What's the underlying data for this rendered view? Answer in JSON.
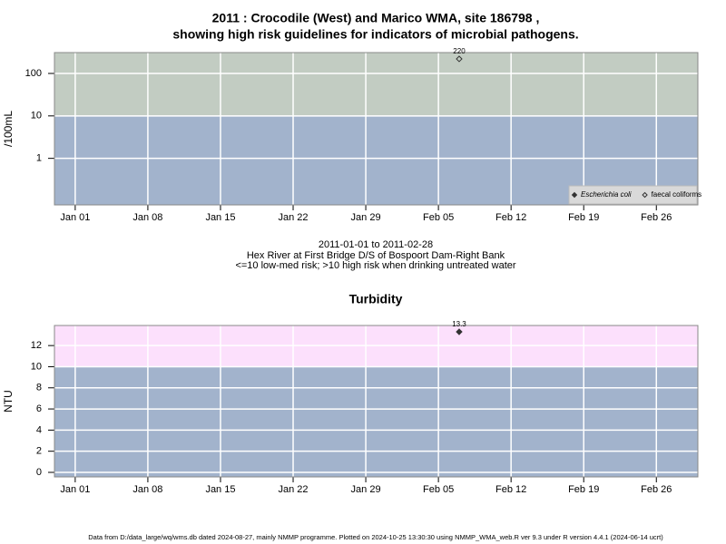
{
  "chart_data": [
    {
      "type": "scatter",
      "title": [
        "2011 : Crocodile (West) and Marico WMA, site 186798 ,",
        "showing high risk guidelines for indicators of microbial pathogens."
      ],
      "ylabel": "/100mL",
      "caption": [
        "2011-01-01 to 2011-02-28",
        "Hex River at First Bridge D/S of Bospoort Dam-Right Bank",
        "<=10 low-med risk; >10 high risk when drinking untreated water"
      ],
      "log_y": true,
      "xlim": [
        "2010-12-30",
        "2011-03-02"
      ],
      "xticks": [
        {
          "value": "2011-01-01",
          "label": "Jan 01"
        },
        {
          "value": "2011-01-08",
          "label": "Jan 08"
        },
        {
          "value": "2011-01-15",
          "label": "Jan 15"
        },
        {
          "value": "2011-01-22",
          "label": "Jan 22"
        },
        {
          "value": "2011-01-29",
          "label": "Jan 29"
        },
        {
          "value": "2011-02-05",
          "label": "Feb 05"
        },
        {
          "value": "2011-02-12",
          "label": "Feb 12"
        },
        {
          "value": "2011-02-19",
          "label": "Feb 19"
        },
        {
          "value": "2011-02-26",
          "label": "Feb 26"
        }
      ],
      "ylim": [
        0.08,
        310
      ],
      "yticks": [
        1,
        10,
        100
      ],
      "threshold": 10,
      "band_colors": [
        "#a2b3cc",
        "#c2ccc2"
      ],
      "grid": true,
      "legend": "bottom-right",
      "series": [
        {
          "name": "Escherichia coli",
          "marker": "filled",
          "x": [],
          "values": []
        },
        {
          "name": "faecal coliforms",
          "marker": "open",
          "x": [
            "2011-02-07"
          ],
          "values": [
            220
          ]
        }
      ],
      "data_labels": true
    },
    {
      "type": "scatter",
      "title": "Turbidity",
      "ylabel": "NTU",
      "log_y": false,
      "xlim": [
        "2010-12-30",
        "2011-03-02"
      ],
      "xticks": [
        {
          "value": "2011-01-01",
          "label": "Jan 01"
        },
        {
          "value": "2011-01-08",
          "label": "Jan 08"
        },
        {
          "value": "2011-01-15",
          "label": "Jan 15"
        },
        {
          "value": "2011-01-22",
          "label": "Jan 22"
        },
        {
          "value": "2011-01-29",
          "label": "Jan 29"
        },
        {
          "value": "2011-02-05",
          "label": "Feb 05"
        },
        {
          "value": "2011-02-12",
          "label": "Feb 12"
        },
        {
          "value": "2011-02-19",
          "label": "Feb 19"
        },
        {
          "value": "2011-02-26",
          "label": "Feb 26"
        }
      ],
      "ylim": [
        -0.43,
        13.9
      ],
      "yticks": [
        0,
        2,
        4,
        6,
        8,
        10,
        12
      ],
      "threshold": 10,
      "band_colors": [
        "#a2b3cc",
        "#fce0fc"
      ],
      "grid": true,
      "series": [
        {
          "marker": "filled",
          "x": [
            "2011-02-07"
          ],
          "values": [
            13.3
          ]
        }
      ],
      "data_labels": true
    }
  ],
  "footer": "Data from D:/data_large/wq/wms.db dated 2024-08-27, mainly NMMP programme. Plotted on 2024-10-25 13:30:30 using NMMP_WMA_web.R ver 9.3 under R version 4.4.1 (2024-06-14 ucrt)"
}
